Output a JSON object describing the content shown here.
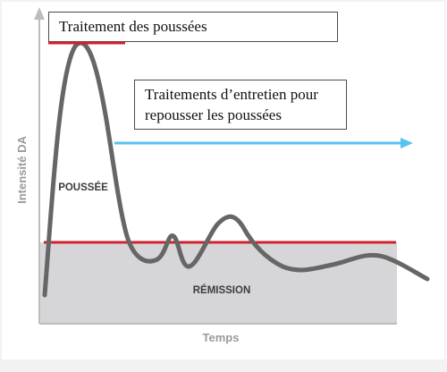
{
  "diagram": {
    "y_axis_label": "Intensité DA",
    "x_axis_label": "Temps",
    "flare_label": "POUSSÉE",
    "remission_label": "RÉMISSION",
    "flare_treatment_box": "Traitement des poussées",
    "maintenance_box_lines": [
      "Traitements d’entretien pour",
      "repousser les poussées"
    ]
  },
  "colors": {
    "axis": "#bdbdbd",
    "curve": "#666666",
    "threshold_line": "#d0222f",
    "remission_zone": "#d6d6d8",
    "arrow": "#56c3f0",
    "axis_label": "#9a9a9a"
  }
}
